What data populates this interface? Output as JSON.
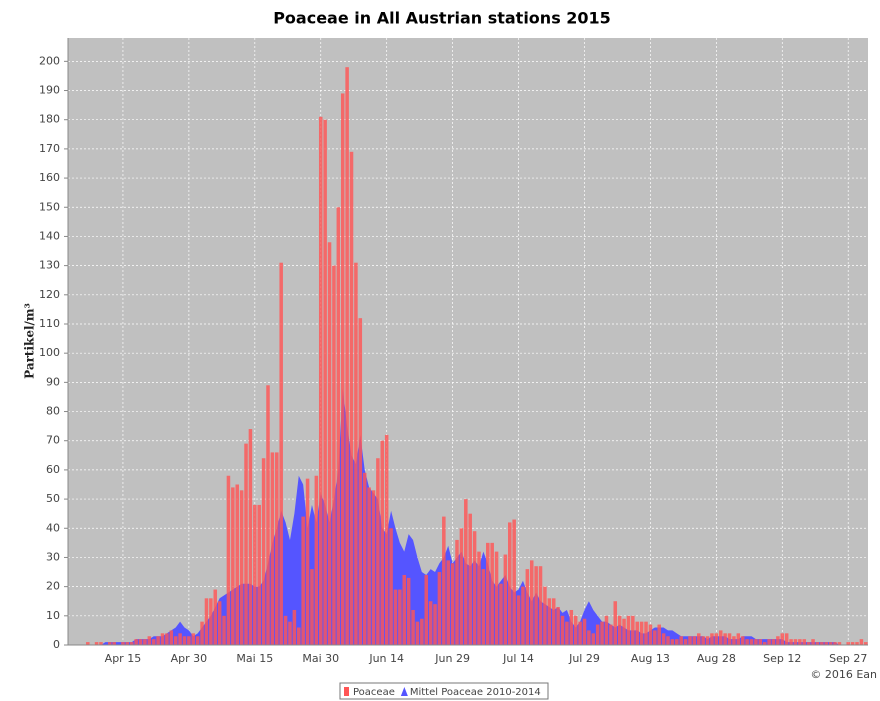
{
  "chart_data": {
    "type": "bar",
    "title": "Poaceae in All Austrian stations 2015",
    "y_label": "Partikel/m³",
    "copyright": "© 2016 Ean",
    "categories": [
      null,
      null,
      null,
      null,
      null,
      null,
      null,
      null,
      null,
      null,
      null,
      null,
      "Apr 15",
      null,
      null,
      null,
      null,
      null,
      null,
      null,
      null,
      null,
      null,
      null,
      null,
      null,
      null,
      "Apr 30",
      null,
      null,
      null,
      null,
      null,
      null,
      null,
      null,
      null,
      null,
      null,
      null,
      null,
      null,
      "Mai 15",
      null,
      null,
      null,
      null,
      null,
      null,
      null,
      null,
      null,
      null,
      null,
      null,
      null,
      null,
      "Mai 30",
      null,
      null,
      null,
      null,
      null,
      null,
      null,
      null,
      null,
      null,
      null,
      null,
      null,
      null,
      "Jun 14",
      null,
      null,
      null,
      null,
      null,
      null,
      null,
      null,
      null,
      null,
      null,
      null,
      null,
      null,
      "Jun 29",
      null,
      null,
      null,
      null,
      null,
      null,
      null,
      null,
      null,
      null,
      null,
      null,
      null,
      null,
      "Jul 14",
      null,
      null,
      null,
      null,
      null,
      null,
      null,
      null,
      null,
      null,
      null,
      null,
      null,
      null,
      "Jul 29",
      null,
      null,
      null,
      null,
      null,
      null,
      null,
      null,
      null,
      null,
      null,
      null,
      null,
      null,
      "Aug 13",
      null,
      null,
      null,
      null,
      null,
      null,
      null,
      null,
      null,
      null,
      null,
      null,
      null,
      null,
      "Aug 28",
      null,
      null,
      null,
      null,
      null,
      null,
      null,
      null,
      null,
      null,
      null,
      null,
      null,
      null,
      "Sep 12",
      null,
      null,
      null,
      null,
      null,
      null,
      null,
      null,
      null,
      null,
      null,
      null,
      null,
      null,
      "Sep 27",
      null,
      null,
      null,
      null
    ],
    "series": [
      {
        "name": "Poaceae",
        "type": "bar",
        "color": "#ff5555",
        "values": [
          0,
          0,
          0,
          0,
          1,
          0,
          1,
          1,
          0,
          1,
          1,
          0,
          1,
          1,
          1,
          2,
          2,
          2,
          3,
          2,
          3,
          4,
          4,
          5,
          3,
          4,
          3,
          3,
          4,
          3,
          8,
          16,
          16,
          19,
          15,
          10,
          58,
          54,
          55,
          53,
          69,
          74,
          48,
          48,
          64,
          89,
          66,
          66,
          131,
          10,
          8,
          12,
          6,
          44,
          57,
          26,
          58,
          181,
          180,
          138,
          130,
          150,
          189,
          198,
          169,
          131,
          112,
          59,
          54,
          53,
          64,
          70,
          72,
          40,
          19,
          19,
          24,
          23,
          12,
          8,
          9,
          24,
          15,
          14,
          25,
          44,
          29,
          28,
          36,
          40,
          50,
          45,
          39,
          32,
          26,
          35,
          35,
          32,
          21,
          31,
          42,
          43,
          17,
          20,
          26,
          29,
          27,
          27,
          20,
          16,
          16,
          13,
          10,
          8,
          12,
          10,
          8,
          9,
          5,
          4,
          7,
          8,
          10,
          7,
          15,
          10,
          9,
          10,
          10,
          8,
          8,
          8,
          7,
          5,
          7,
          4,
          3,
          2,
          2,
          3,
          2,
          3,
          3,
          4,
          3,
          3,
          4,
          4,
          5,
          4,
          4,
          3,
          4,
          3,
          2,
          2,
          2,
          2,
          1,
          2,
          2,
          3,
          4,
          4,
          2,
          2,
          2,
          2,
          1,
          2,
          1,
          1,
          1,
          1,
          1,
          1,
          0,
          1,
          1,
          1,
          2,
          1
        ]
      },
      {
        "name": "Mittel Poaceae 2010-2014",
        "type": "area",
        "color": "#5555ff",
        "values": [
          0,
          0,
          0,
          0,
          0,
          0,
          0,
          0,
          1,
          1,
          1,
          1,
          1,
          1,
          1,
          2,
          2,
          2,
          2,
          3,
          3,
          3,
          4,
          5,
          6,
          8,
          6,
          5,
          3,
          4,
          6,
          8,
          10,
          13,
          16,
          17,
          18,
          19,
          20,
          21,
          21,
          21,
          20,
          20,
          22,
          28,
          35,
          40,
          46,
          42,
          36,
          45,
          58,
          55,
          40,
          48,
          42,
          52,
          48,
          42,
          50,
          60,
          88,
          75,
          65,
          62,
          72,
          60,
          54,
          52,
          50,
          40,
          38,
          46,
          40,
          35,
          32,
          38,
          36,
          30,
          25,
          24,
          26,
          25,
          28,
          30,
          34,
          28,
          30,
          32,
          28,
          27,
          29,
          27,
          32,
          28,
          22,
          20,
          22,
          24,
          20,
          18,
          19,
          22,
          18,
          15,
          18,
          15,
          14,
          13,
          12,
          13,
          11,
          12,
          8,
          6,
          8,
          12,
          15,
          12,
          10,
          8,
          8,
          7,
          6,
          7,
          6,
          5,
          5,
          5,
          4,
          4,
          5,
          6,
          6,
          6,
          5,
          5,
          4,
          3,
          3,
          3,
          3,
          3,
          3,
          2,
          3,
          3,
          3,
          3,
          2,
          2,
          2,
          3,
          3,
          3,
          2,
          2,
          2,
          2,
          2,
          2,
          2,
          1,
          1,
          1,
          1,
          1,
          1,
          1,
          1,
          1,
          1,
          1,
          1,
          0,
          0,
          0,
          0,
          0,
          0,
          0
        ]
      }
    ],
    "ylim": [
      0,
      208
    ],
    "yticks": [
      0,
      10,
      20,
      30,
      40,
      50,
      60,
      70,
      80,
      90,
      100,
      110,
      120,
      130,
      140,
      150,
      160,
      170,
      180,
      190,
      200
    ],
    "grid": true,
    "legend": "bottom"
  }
}
